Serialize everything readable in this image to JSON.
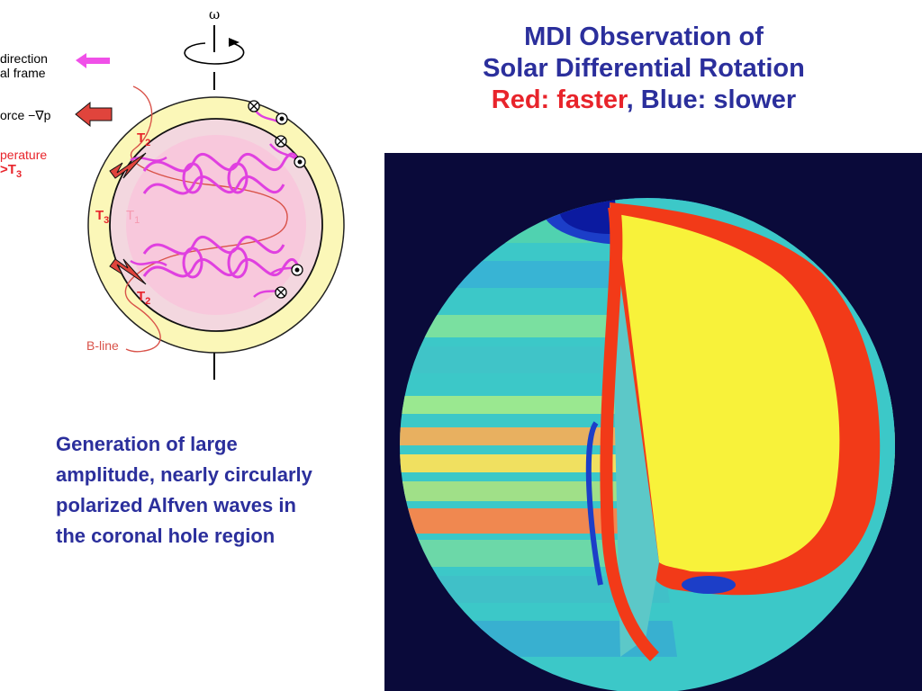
{
  "title": {
    "line1": "MDI Observation of",
    "line2": "Solar Differential Rotation",
    "red_part": "Red: faster",
    "sep": ", ",
    "blue_part": "Blue: slower"
  },
  "caption": "Generation of large amplitude, nearly circularly polarized Alfven waves in the coronal hole region",
  "diagram": {
    "omega": "ω",
    "legend_direction_1": "direction",
    "legend_direction_2": "al frame",
    "legend_force": "orce  −∇p",
    "legend_temperature": "perature",
    "legend_temp_relation": ">T",
    "legend_temp_sub": "3",
    "t2_top": "T",
    "t2_top_sub": "2",
    "t2_bottom": "T",
    "t2_bottom_sub": "2",
    "t3": "T",
    "t3_sub": "3",
    "t1": "T",
    "t1_sub": "1",
    "bline": "B-line"
  },
  "colors": {
    "title_blue": "#2b2f9c",
    "title_red": "#e8242b",
    "sun_background": "#0a0a3a",
    "outer_shell": "#fbf7b8",
    "inner_core": "#f7cde0",
    "magenta": "#e040e0",
    "arrow_red": "#e0443c",
    "legend_red": "#e8242b",
    "bline_label": "#d9534a",
    "core_yellow": "#f8f23a",
    "fast_red": "#f23a18",
    "slow_blue": "#1c3ec8",
    "surface_cyan": "#3cc8c8"
  }
}
